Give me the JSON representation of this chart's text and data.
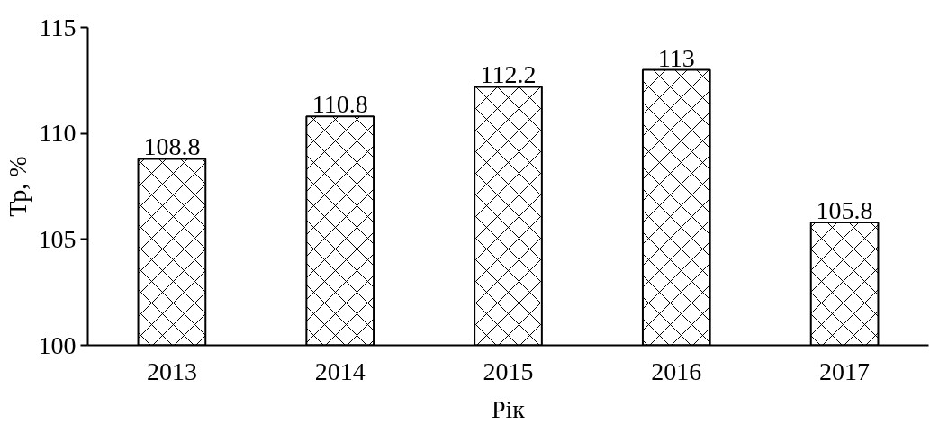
{
  "chart_data": {
    "type": "bar",
    "xlabel": "Рік",
    "ylabel": "Тр, %",
    "categories": [
      "2013",
      "2014",
      "2015",
      "2016",
      "2017"
    ],
    "values": [
      108.8,
      110.8,
      112.2,
      113,
      105.8
    ],
    "color": "#ffffff",
    "ylim": [
      100,
      115
    ],
    "yticks": [
      100,
      105,
      110,
      115
    ],
    "data_labels": true,
    "grid": false
  }
}
